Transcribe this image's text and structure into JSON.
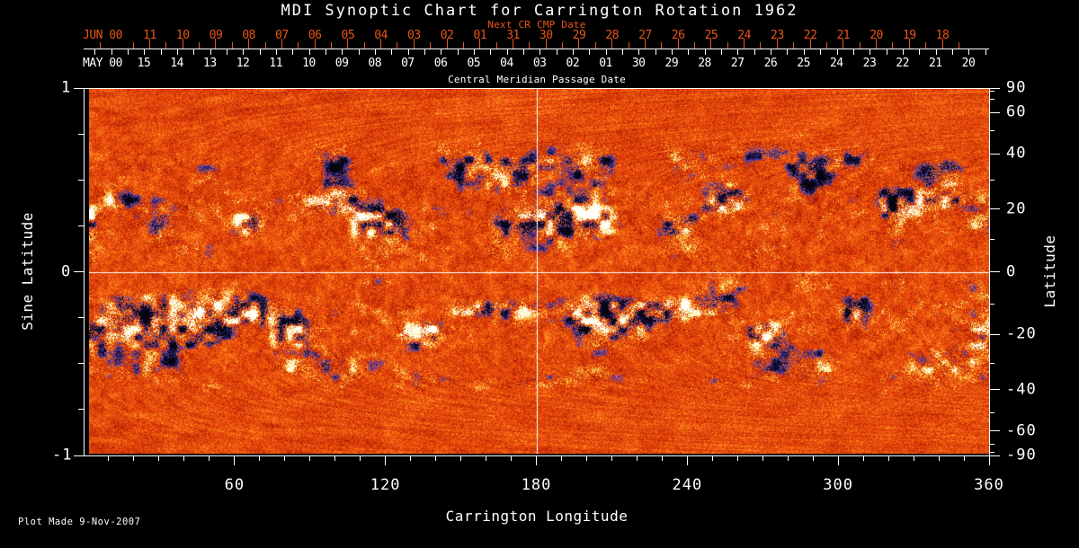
{
  "title": "MDI Synoptic Chart for Carrington Rotation 1962",
  "top_axis": {
    "red_label": "Next CR CMP Date",
    "red_month": "JUN 00",
    "red_days": [
      "11",
      "10",
      "09",
      "08",
      "07",
      "06",
      "05",
      "04",
      "03",
      "02",
      "01",
      "31",
      "30",
      "29",
      "28",
      "27",
      "26",
      "25",
      "24",
      "23",
      "22",
      "21",
      "20",
      "19",
      "18"
    ],
    "white_month": "MAY 00",
    "white_days": [
      "15",
      "14",
      "13",
      "12",
      "11",
      "10",
      "09",
      "08",
      "07",
      "06",
      "05",
      "04",
      "03",
      "02",
      "01",
      "30",
      "29",
      "28",
      "27",
      "26",
      "25",
      "24",
      "23",
      "22",
      "21",
      "20"
    ],
    "white_label": "Central Meridian Passage Date"
  },
  "left_axis": {
    "label": "Sine Latitude",
    "ticks": [
      "1",
      "0",
      "-1"
    ]
  },
  "right_axis": {
    "label": "Latitude",
    "ticks": [
      "90",
      "60",
      "40",
      "20",
      "0",
      "-20",
      "-40",
      "-60",
      "-90"
    ]
  },
  "bottom_axis": {
    "label": "Carrington Longitude",
    "ticks": [
      "60",
      "120",
      "180",
      "240",
      "300",
      "360"
    ]
  },
  "footer": {
    "plot_made": "Plot Made  9-Nov-2007"
  },
  "colors": {
    "background": "#000000",
    "axis": "#ffffff",
    "cmp_red": "#ea5518",
    "quiet_sun_orange": "#e8480a",
    "negative_polarity_core": "#06040e",
    "negative_polarity_fringe": "#4038be",
    "positive_polarity_core": "#ffffff",
    "positive_polarity_fringe": "#ffd84a"
  },
  "chart_data": {
    "type": "heatmap",
    "title": "MDI Synoptic Chart for Carrington Rotation 1962",
    "xlabel": "Carrington Longitude",
    "ylabel_left": "Sine Latitude",
    "ylabel_right": "Latitude",
    "xlim": [
      0,
      360
    ],
    "ylim_sine_latitude": [
      -1,
      1
    ],
    "x_major_ticks_deg": [
      60,
      120,
      180,
      240,
      300,
      360
    ],
    "x_minor_tick_step_deg": 10,
    "left_ticks_sine": [
      1,
      0,
      -1
    ],
    "left_minor_ticks_sine": [
      0.75,
      0.5,
      0.25,
      -0.25,
      -0.5,
      -0.75
    ],
    "right_ticks_latitude_deg": [
      90,
      60,
      40,
      20,
      0,
      -20,
      -40,
      -60,
      -90
    ],
    "right_minor_ticks_latitude_deg": [
      80,
      70,
      50,
      30,
      10,
      -10,
      -30,
      -50,
      -70,
      -80
    ],
    "grid_lines": {
      "longitude_deg": [
        180
      ],
      "sine_latitude": [
        0
      ]
    },
    "cmp_date_axis": {
      "month_start": "MAY 00",
      "days": [
        "15",
        "14",
        "13",
        "12",
        "11",
        "10",
        "09",
        "08",
        "07",
        "06",
        "05",
        "04",
        "03",
        "02",
        "01",
        "30",
        "29",
        "28",
        "27",
        "26",
        "25",
        "24",
        "23",
        "22",
        "21",
        "20"
      ]
    },
    "next_cr_cmp_date_axis": {
      "month_start": "JUN 00",
      "days": [
        "11",
        "10",
        "09",
        "08",
        "07",
        "06",
        "05",
        "04",
        "03",
        "02",
        "01",
        "31",
        "30",
        "29",
        "28",
        "27",
        "26",
        "25",
        "24",
        "23",
        "22",
        "21",
        "20",
        "19",
        "18"
      ]
    },
    "colorscale": "orange quiet sun; white/yellow positive magnetic polarity; black/blue negative magnetic polarity",
    "activity_bands_latitude_deg": [
      [
        10,
        30
      ],
      [
        30,
        43
      ],
      [
        -28,
        -8
      ],
      [
        -40,
        -28
      ]
    ],
    "legend": "none"
  }
}
